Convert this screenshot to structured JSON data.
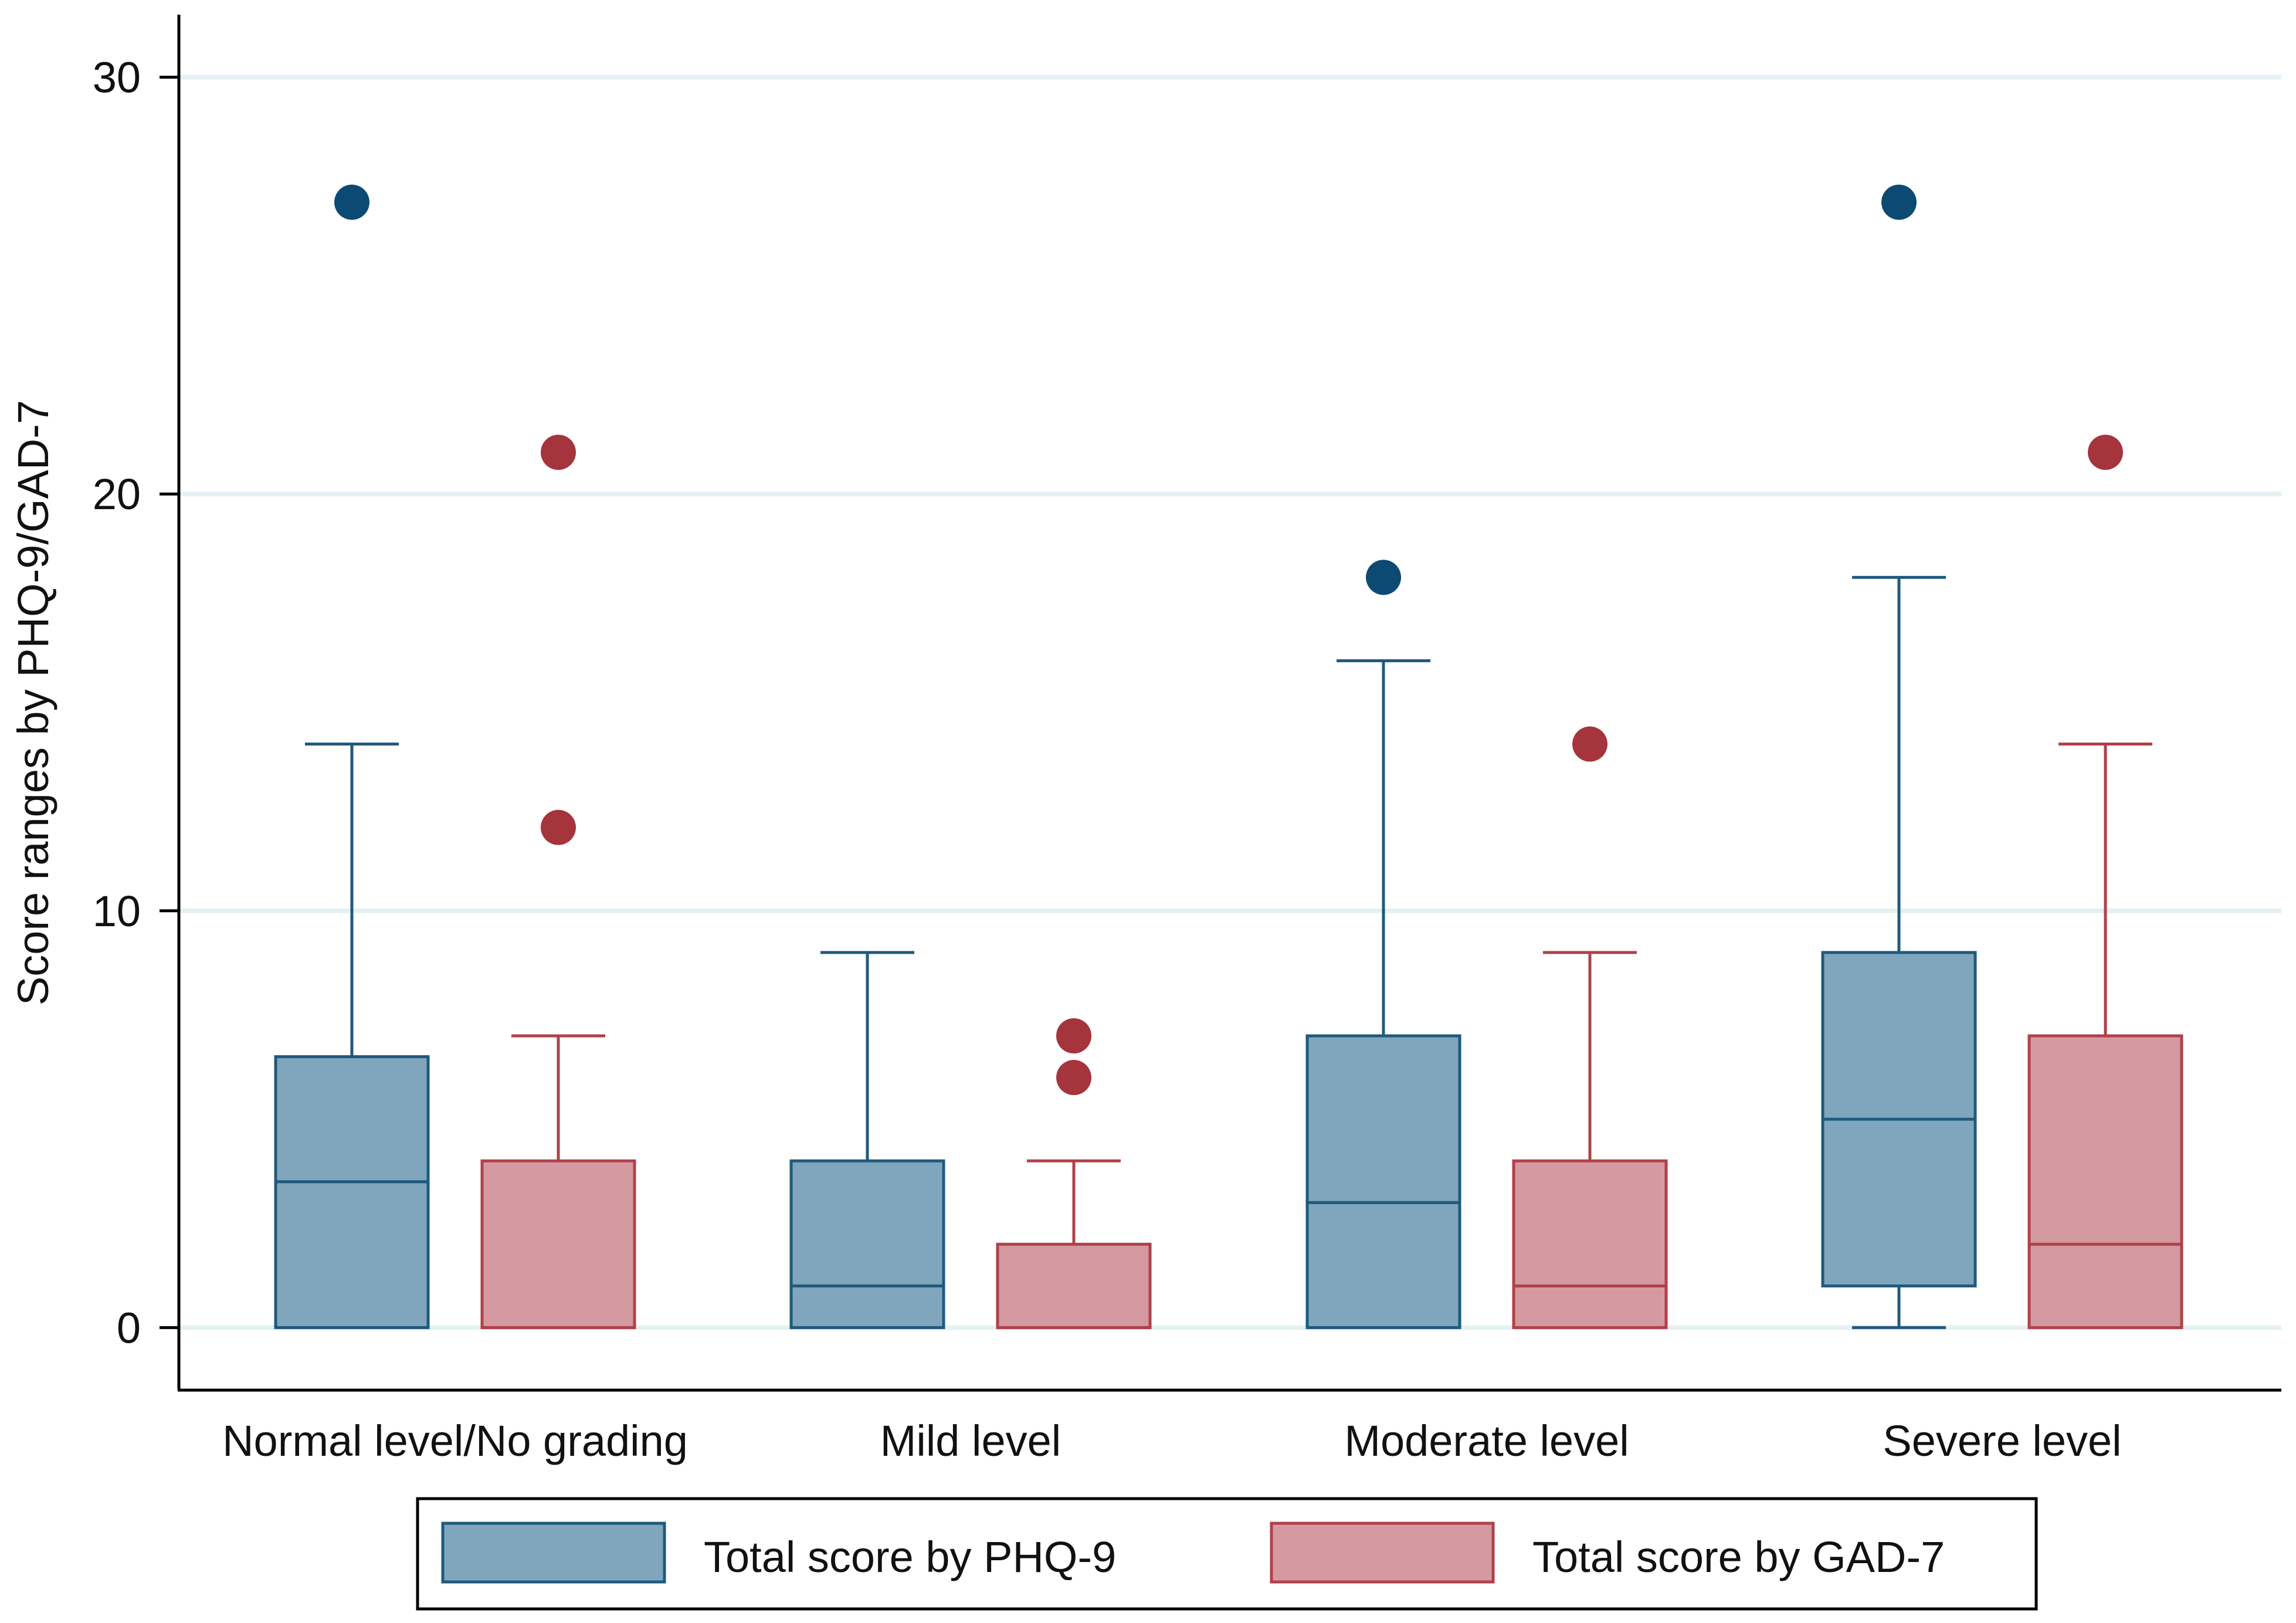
{
  "chart_data": {
    "type": "boxplot",
    "title": "",
    "xlabel": "",
    "ylabel": "Score ranges by PHQ-9/GAD-7",
    "ylim": [
      -1.5,
      31.5
    ],
    "yticks": [
      0,
      10,
      20,
      30
    ],
    "grid": true,
    "categories": [
      "Normal level/No grading",
      "Mild level",
      "Moderate level",
      "Severe level"
    ],
    "series": [
      {
        "name": "Total score by PHQ-9",
        "fill": "#7fa6bc",
        "stroke": "#1f5a7c",
        "outlier_color": "#0d4a73",
        "boxes": [
          {
            "lower_whisker": 0,
            "q1": 0,
            "median": 3.5,
            "q3": 6.5,
            "upper_whisker": 14,
            "outliers": [
              27
            ]
          },
          {
            "lower_whisker": 0,
            "q1": 0,
            "median": 1,
            "q3": 4,
            "upper_whisker": 9,
            "outliers": []
          },
          {
            "lower_whisker": 0,
            "q1": 0,
            "median": 3,
            "q3": 7,
            "upper_whisker": 16,
            "outliers": [
              18
            ]
          },
          {
            "lower_whisker": 0,
            "q1": 1,
            "median": 5,
            "q3": 9,
            "upper_whisker": 18,
            "outliers": [
              27
            ]
          }
        ]
      },
      {
        "name": "Total score by GAD-7",
        "fill": "#d59aa1",
        "stroke": "#b0404a",
        "outlier_color": "#a5343c",
        "boxes": [
          {
            "lower_whisker": 0,
            "q1": 0,
            "median": 0,
            "q3": 4,
            "upper_whisker": 7,
            "outliers": [
              12,
              21
            ]
          },
          {
            "lower_whisker": 0,
            "q1": 0,
            "median": 0,
            "q3": 2,
            "upper_whisker": 4,
            "outliers": [
              6,
              7
            ]
          },
          {
            "lower_whisker": 0,
            "q1": 0,
            "median": 1,
            "q3": 4,
            "upper_whisker": 9,
            "outliers": [
              14
            ]
          },
          {
            "lower_whisker": 0,
            "q1": 0,
            "median": 2,
            "q3": 7,
            "upper_whisker": 14,
            "outliers": [
              21
            ]
          }
        ]
      }
    ],
    "legend_position": "bottom",
    "gridline_color": "#e4f0f4",
    "axis_color": "#000000"
  }
}
